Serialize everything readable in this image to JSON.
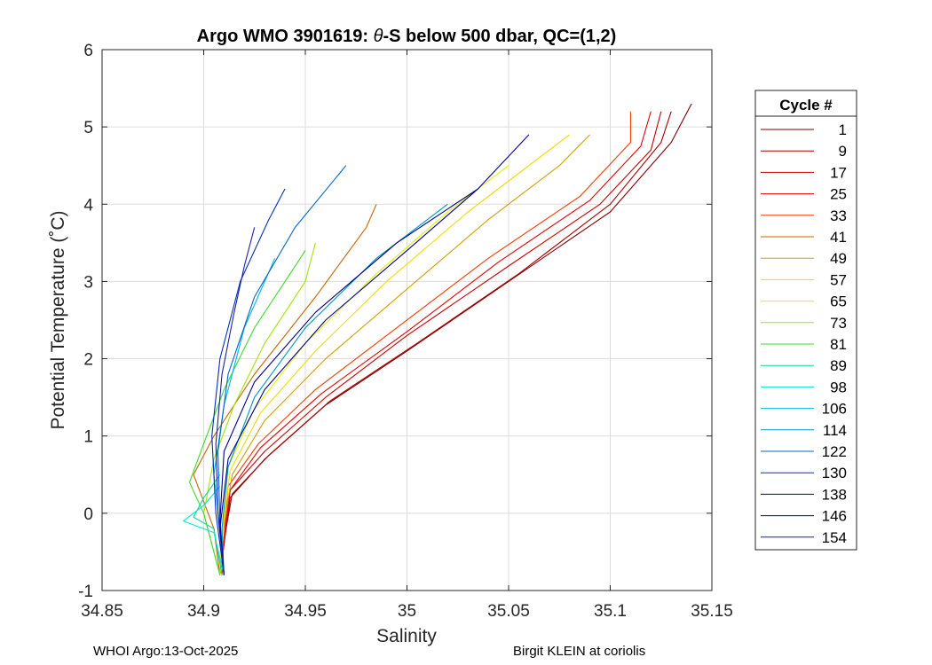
{
  "chart_data": {
    "type": "line",
    "title_prefix": "Argo WMO 3901619: ",
    "title_theta": "θ",
    "title_suffix": "-S below 500 dbar,  QC=(1,2)",
    "xlabel": "Salinity",
    "ylabel": "Potential Temperature (˚C)",
    "xlim": [
      34.85,
      35.15
    ],
    "ylim": [
      -1,
      6
    ],
    "xticks": [
      34.85,
      34.9,
      34.95,
      35,
      35.05,
      35.1,
      35.15
    ],
    "xtick_labels": [
      "34.85",
      "34.9",
      "34.95",
      "35",
      "35.05",
      "35.1",
      "35.15"
    ],
    "yticks": [
      -1,
      0,
      1,
      2,
      3,
      4,
      5,
      6
    ],
    "ytick_labels": [
      "-1",
      "0",
      "1",
      "2",
      "3",
      "4",
      "5",
      "6"
    ],
    "grid": true,
    "legend_title": "Cycle #",
    "legend_position": "outside-right",
    "series": [
      {
        "name": "1",
        "color": "#800000",
        "x": [
          34.908,
          34.909,
          34.913,
          34.93,
          34.96,
          35.0,
          35.05,
          35.1,
          35.13,
          35.14
        ],
        "y": [
          -0.8,
          -0.6,
          0.2,
          0.7,
          1.4,
          2.1,
          3.0,
          3.9,
          4.8,
          5.3
        ]
      },
      {
        "name": "9",
        "color": "#a50000",
        "x": [
          34.908,
          34.909,
          34.914,
          34.932,
          34.962,
          35.005,
          35.055,
          35.1,
          35.125,
          35.13
        ],
        "y": [
          -0.8,
          -0.5,
          0.25,
          0.75,
          1.45,
          2.2,
          3.1,
          4.0,
          4.8,
          5.2
        ]
      },
      {
        "name": "17",
        "color": "#c80000",
        "x": [
          34.908,
          34.91,
          34.913,
          34.93,
          34.96,
          35.0,
          35.05,
          35.095,
          35.12,
          35.125
        ],
        "y": [
          -0.8,
          -0.4,
          0.3,
          0.8,
          1.5,
          2.3,
          3.2,
          4.0,
          4.7,
          5.2
        ]
      },
      {
        "name": "25",
        "color": "#e60000",
        "x": [
          34.909,
          34.91,
          34.913,
          34.928,
          34.958,
          35.0,
          35.045,
          35.09,
          35.115,
          35.12
        ],
        "y": [
          -0.8,
          -0.3,
          0.3,
          0.85,
          1.55,
          2.35,
          3.25,
          4.05,
          4.75,
          5.2
        ]
      },
      {
        "name": "33",
        "color": "#f03c00",
        "x": [
          34.908,
          34.91,
          34.912,
          34.927,
          34.955,
          34.995,
          35.04,
          35.085,
          35.11,
          35.11
        ],
        "y": [
          -0.8,
          -0.3,
          0.35,
          0.9,
          1.6,
          2.4,
          3.3,
          4.1,
          4.8,
          5.2
        ]
      },
      {
        "name": "41",
        "color": "#c86400",
        "x": [
          34.908,
          34.905,
          34.895,
          34.905,
          34.925,
          34.955,
          34.98,
          34.985
        ],
        "y": [
          -0.8,
          -0.2,
          0.5,
          1.0,
          1.8,
          2.8,
          3.7,
          4.0
        ]
      },
      {
        "name": "49",
        "color": "#d2a000",
        "x": [
          34.908,
          34.909,
          34.914,
          34.93,
          34.96,
          35.0,
          35.04,
          35.075,
          35.09
        ],
        "y": [
          -0.8,
          -0.3,
          0.5,
          1.2,
          2.0,
          2.9,
          3.8,
          4.5,
          4.9
        ]
      },
      {
        "name": "57",
        "color": "#f0dc00",
        "x": [
          34.908,
          34.909,
          34.913,
          34.928,
          34.955,
          34.99,
          35.03,
          35.065,
          35.08
        ],
        "y": [
          -0.8,
          -0.3,
          0.55,
          1.3,
          2.1,
          3.0,
          3.9,
          4.6,
          4.9
        ]
      },
      {
        "name": "65",
        "color": "#e6f000",
        "x": [
          34.908,
          34.909,
          34.912,
          34.925,
          34.95,
          34.985,
          35.02,
          35.05
        ],
        "y": [
          -0.8,
          -0.3,
          0.6,
          1.35,
          2.2,
          3.1,
          3.9,
          4.5
        ]
      },
      {
        "name": "73",
        "color": "#a0e600",
        "x": [
          34.908,
          34.9,
          34.905,
          34.915,
          34.93,
          34.95,
          34.955
        ],
        "y": [
          -0.8,
          0.0,
          0.7,
          1.4,
          2.2,
          3.0,
          3.5
        ]
      },
      {
        "name": "81",
        "color": "#3cdc28",
        "x": [
          34.908,
          34.9,
          34.893,
          34.9,
          34.91,
          34.925,
          34.94,
          34.95
        ],
        "y": [
          -0.8,
          0.0,
          0.4,
          0.9,
          1.6,
          2.4,
          3.0,
          3.4
        ]
      },
      {
        "name": "89",
        "color": "#14d296",
        "x": [
          34.909,
          34.905,
          34.895,
          34.9,
          34.908
        ],
        "y": [
          -0.8,
          -0.2,
          -0.05,
          0.2,
          0.5
        ]
      },
      {
        "name": "98",
        "color": "#00e6dc",
        "x": [
          34.91,
          34.905,
          34.89,
          34.9,
          34.908
        ],
        "y": [
          -0.8,
          -0.25,
          -0.1,
          0.1,
          0.35
        ]
      },
      {
        "name": "106",
        "color": "#00b4e6",
        "x": [
          34.91,
          34.908,
          34.905,
          34.91,
          34.92,
          34.935
        ],
        "y": [
          -0.8,
          -0.2,
          0.5,
          1.4,
          2.4,
          3.3
        ]
      },
      {
        "name": "114",
        "color": "#0096be",
        "x": [
          34.91,
          34.909,
          34.912,
          34.925,
          34.95,
          34.985,
          35.02
        ],
        "y": [
          -0.8,
          -0.2,
          0.6,
          1.5,
          2.4,
          3.3,
          4.0
        ]
      },
      {
        "name": "122",
        "color": "#0064c8",
        "x": [
          34.91,
          34.908,
          34.907,
          34.912,
          34.925,
          34.945,
          34.97
        ],
        "y": [
          -0.8,
          -0.1,
          0.8,
          1.8,
          2.8,
          3.7,
          4.5
        ]
      },
      {
        "name": "130",
        "color": "#0032b4",
        "x": [
          34.91,
          34.906,
          34.904,
          34.908,
          34.918,
          34.932,
          34.94
        ],
        "y": [
          -0.8,
          0.0,
          1.0,
          2.0,
          3.0,
          3.8,
          4.2
        ]
      },
      {
        "name": "138",
        "color": "#000096",
        "x": [
          34.91,
          34.908,
          34.912,
          34.93,
          34.96,
          35.0,
          35.035,
          35.06
        ],
        "y": [
          -0.8,
          -0.2,
          0.7,
          1.6,
          2.5,
          3.4,
          4.2,
          4.9
        ]
      },
      {
        "name": "146",
        "color": "#00008c",
        "x": [
          34.91,
          34.908,
          34.91,
          34.925,
          34.955,
          34.995,
          35.035
        ],
        "y": [
          -0.8,
          -0.1,
          0.8,
          1.7,
          2.6,
          3.5,
          4.2
        ]
      },
      {
        "name": "154",
        "color": "#1e1ea0",
        "x": [
          34.91,
          34.907,
          34.906,
          34.909,
          34.915,
          34.92,
          34.925
        ],
        "y": [
          -0.8,
          0.0,
          0.9,
          1.8,
          2.6,
          3.2,
          3.7
        ]
      }
    ]
  },
  "footer": {
    "left": "WHOI Argo:13-Oct-2025",
    "right": "Birgit KLEIN at coriolis"
  }
}
